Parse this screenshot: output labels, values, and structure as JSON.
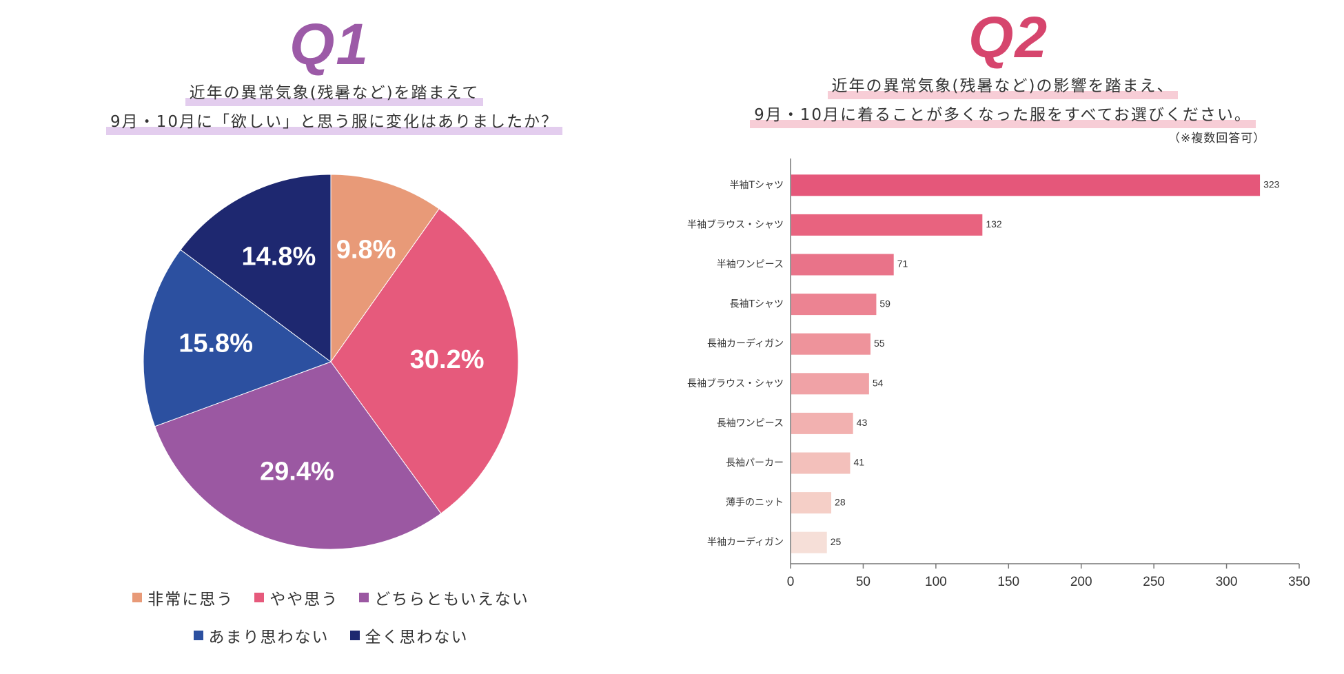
{
  "q1": {
    "label": "Q1",
    "question_line1": "近年の異常気象(残暑など)を踏まえて",
    "question_line2": "9月・10月に「欲しい」と思う服に変化はありましたか？"
  },
  "q2": {
    "label": "Q2",
    "question_line1": "近年の異常気象(残暑など)の影響を踏まえ、",
    "question_line2": "9月・10月に着ることが多くなった服をすべてお選びください。",
    "note": "（※複数回答可）"
  },
  "chart_data": [
    {
      "type": "pie",
      "categories": [
        "非常に思う",
        "やや思う",
        "どちらともいえない",
        "あまり思わない",
        "全く思わない"
      ],
      "values": [
        9.8,
        30.2,
        29.4,
        15.8,
        14.8
      ],
      "labels": [
        "9.8%",
        "30.2%",
        "29.4%",
        "15.8%",
        "14.8%"
      ],
      "colors": [
        "#e89a78",
        "#e65a7c",
        "#9b58a2",
        "#2c50a0",
        "#1e2870"
      ],
      "start_angle": "12 o'clock",
      "direction": "clockwise",
      "legend_position": "bottom"
    },
    {
      "type": "bar",
      "orientation": "horizontal",
      "categories": [
        "半袖Tシャツ",
        "半袖ブラウス・シャツ",
        "半袖ワンピース",
        "長袖Tシャツ",
        "長袖カーディガン",
        "長袖ブラウス・シャツ",
        "長袖ワンピース",
        "長袖パーカー",
        "薄手のニット",
        "半袖カーディガン"
      ],
      "values": [
        323,
        132,
        71,
        59,
        55,
        54,
        43,
        41,
        28,
        25
      ],
      "xlim": [
        0,
        350
      ],
      "xticks": [
        0,
        50,
        100,
        150,
        200,
        250,
        300,
        350
      ],
      "colors": [
        "#e5577a",
        "#e8637f",
        "#e97389",
        "#ec8392",
        "#ee939b",
        "#f0a2a6",
        "#f2b1b0",
        "#f3c0bb",
        "#f5cfc7",
        "#f6dfd8"
      ],
      "grid": false
    }
  ]
}
